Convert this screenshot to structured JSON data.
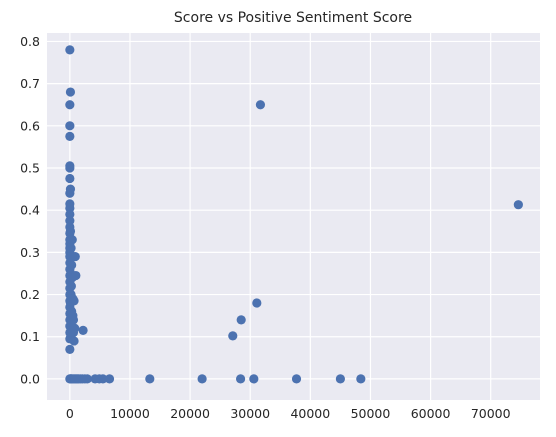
{
  "chart_data": {
    "type": "scatter",
    "title": "Score vs Positive Sentiment Score",
    "xlabel": "",
    "ylabel": "",
    "xlim": [
      -3800,
      78200
    ],
    "ylim": [
      -0.05,
      0.82
    ],
    "x_ticks": [
      0,
      10000,
      20000,
      30000,
      40000,
      50000,
      60000,
      70000
    ],
    "x_tick_labels": [
      "0",
      "10000",
      "20000",
      "30000",
      "40000",
      "50000",
      "60000",
      "70000"
    ],
    "y_ticks": [
      0.0,
      0.1,
      0.2,
      0.3,
      0.4,
      0.5,
      0.6,
      0.7,
      0.8
    ],
    "y_tick_labels": [
      "0.0",
      "0.1",
      "0.2",
      "0.3",
      "0.4",
      "0.5",
      "0.6",
      "0.7",
      "0.8"
    ],
    "grid": true,
    "marker_color": "#4c72b0",
    "background_color": "#eaeaf2",
    "series": [
      {
        "points": [
          [
            0,
            0.78
          ],
          [
            100,
            0.68
          ],
          [
            0,
            0.65
          ],
          [
            0,
            0.6
          ],
          [
            0,
            0.575
          ],
          [
            0,
            0.505
          ],
          [
            0,
            0.5
          ],
          [
            0,
            0.475
          ],
          [
            100,
            0.45
          ],
          [
            0,
            0.44
          ],
          [
            0,
            0.415
          ],
          [
            0,
            0.405
          ],
          [
            0,
            0.39
          ],
          [
            0,
            0.375
          ],
          [
            0,
            0.36
          ],
          [
            0,
            0.345
          ],
          [
            0,
            0.33
          ],
          [
            0,
            0.32
          ],
          [
            0,
            0.31
          ],
          [
            0,
            0.3
          ],
          [
            0,
            0.29
          ],
          [
            0,
            0.275
          ],
          [
            0,
            0.26
          ],
          [
            0,
            0.245
          ],
          [
            0,
            0.23
          ],
          [
            0,
            0.215
          ],
          [
            0,
            0.2
          ],
          [
            0,
            0.185
          ],
          [
            0,
            0.17
          ],
          [
            0,
            0.155
          ],
          [
            0,
            0.14
          ],
          [
            0,
            0.125
          ],
          [
            0,
            0.11
          ],
          [
            0,
            0.095
          ],
          [
            0,
            0.07
          ],
          [
            100,
            0.35
          ],
          [
            200,
            0.31
          ],
          [
            300,
            0.27
          ],
          [
            150,
            0.25
          ],
          [
            250,
            0.22
          ],
          [
            200,
            0.2
          ],
          [
            100,
            0.18
          ],
          [
            300,
            0.16
          ],
          [
            200,
            0.13
          ],
          [
            150,
            0.1
          ],
          [
            400,
            0.33
          ],
          [
            400,
            0.24
          ],
          [
            500,
            0.19
          ],
          [
            500,
            0.15
          ],
          [
            450,
            0.12
          ],
          [
            600,
            0.14
          ],
          [
            600,
            0.11
          ],
          [
            700,
            0.185
          ],
          [
            700,
            0.09
          ],
          [
            800,
            0.12
          ],
          [
            900,
            0.29
          ],
          [
            1000,
            0.245
          ],
          [
            2200,
            0.115
          ],
          [
            0,
            0.0
          ],
          [
            100,
            0.0
          ],
          [
            200,
            0.0
          ],
          [
            300,
            0.0
          ],
          [
            500,
            0.0
          ],
          [
            700,
            0.0
          ],
          [
            900,
            0.0
          ],
          [
            1100,
            0.0
          ],
          [
            1300,
            0.0
          ],
          [
            1500,
            0.0
          ],
          [
            1800,
            0.0
          ],
          [
            2100,
            0.0
          ],
          [
            2500,
            0.0
          ],
          [
            2900,
            0.0
          ],
          [
            4200,
            0.0
          ],
          [
            4900,
            0.0
          ],
          [
            5500,
            0.0
          ],
          [
            6600,
            0.0
          ],
          [
            13300,
            0.0
          ],
          [
            22000,
            0.0
          ],
          [
            28400,
            0.0
          ],
          [
            30600,
            0.0
          ],
          [
            37700,
            0.0
          ],
          [
            45000,
            0.0
          ],
          [
            48400,
            0.0
          ],
          [
            27100,
            0.102
          ],
          [
            28500,
            0.14
          ],
          [
            31100,
            0.18
          ],
          [
            31700,
            0.65
          ],
          [
            74600,
            0.413
          ]
        ]
      }
    ]
  }
}
